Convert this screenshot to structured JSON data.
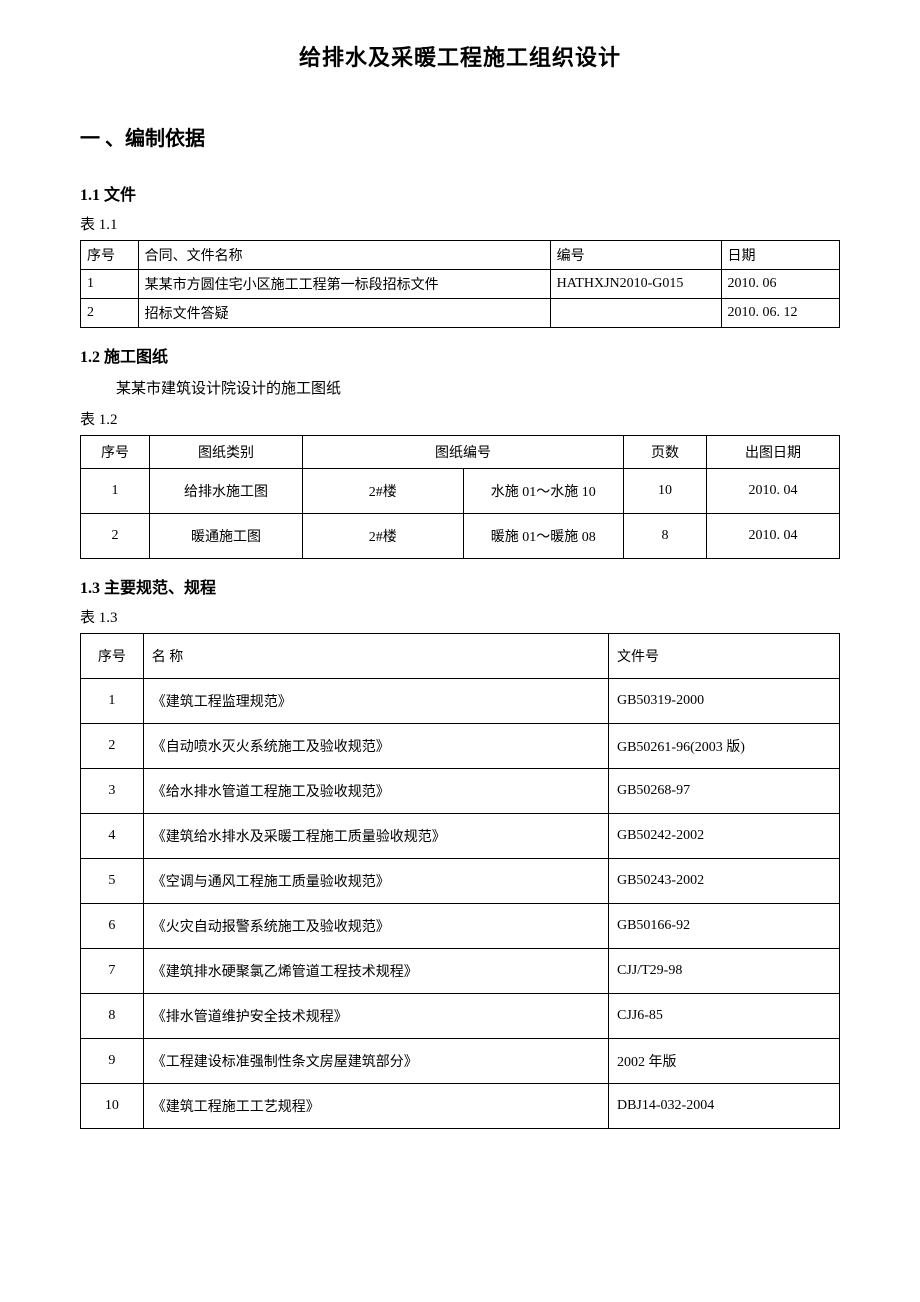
{
  "doc_title": "给排水及采暖工程施工组织设计",
  "section1": {
    "heading": "一 、编制依据",
    "s11": {
      "heading": "1.1 文件",
      "table_label": "表 1.1",
      "columns": [
        "序号",
        "合同、文件名称",
        "编号",
        "日期"
      ],
      "rows": [
        [
          "1",
          "某某市方圆住宅小区施工工程第一标段招标文件",
          "HATHXJN2010-G015",
          "2010. 06"
        ],
        [
          "2",
          "招标文件答疑",
          "",
          "2010. 06. 12"
        ]
      ]
    },
    "s12": {
      "heading": "1.2 施工图纸",
      "body": "某某市建筑设计院设计的施工图纸",
      "table_label": "表 1.2",
      "columns": [
        "序号",
        "图纸类别",
        "图纸编号",
        "页数",
        "出图日期"
      ],
      "rows": [
        [
          "1",
          "给排水施工图",
          "2#楼",
          "水施 01～水施 10",
          "10",
          "2010. 04"
        ],
        [
          "2",
          "暖通施工图",
          "2#楼",
          "暖施 01～暖施 08",
          "8",
          "2010. 04"
        ]
      ]
    },
    "s13": {
      "heading": "1.3 主要规范、规程",
      "table_label": "表 1.3",
      "columns": [
        "序号",
        "名    称",
        "文件号"
      ],
      "rows": [
        [
          "1",
          "《建筑工程监理规范》",
          "GB50319-2000"
        ],
        [
          "2",
          "《自动喷水灭火系统施工及验收规范》",
          "GB50261-96(2003 版)"
        ],
        [
          "3",
          "《给水排水管道工程施工及验收规范》",
          "GB50268-97"
        ],
        [
          "4",
          "《建筑给水排水及采暖工程施工质量验收规范》",
          "GB50242-2002"
        ],
        [
          "5",
          "《空调与通风工程施工质量验收规范》",
          "GB50243-2002"
        ],
        [
          "6",
          "《火灾自动报警系统施工及验收规范》",
          "GB50166-92"
        ],
        [
          "7",
          "《建筑排水硬聚氯乙烯管道工程技术规程》",
          "CJJ/T29-98"
        ],
        [
          "8",
          "《排水管道维护安全技术规程》",
          "CJJ6-85"
        ],
        [
          "9",
          "《工程建设标准强制性条文房屋建筑部分》",
          "2002 年版"
        ],
        [
          "10",
          "《建筑工程施工工艺规程》",
          "DBJ14-032-2004"
        ]
      ]
    }
  }
}
